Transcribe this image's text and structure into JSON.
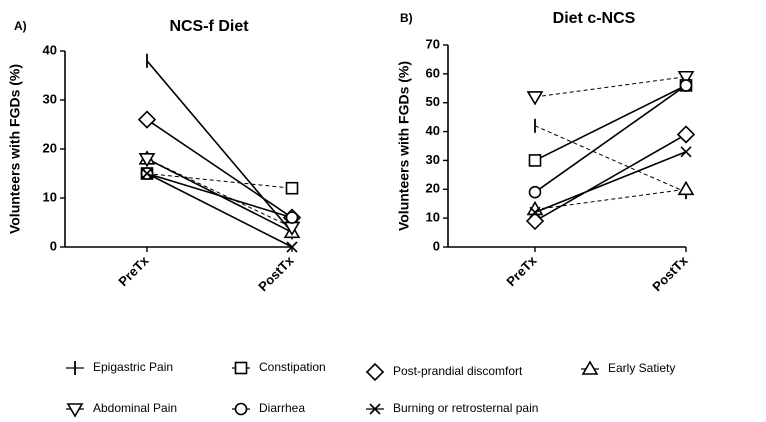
{
  "chart_data": [
    {
      "type": "line",
      "panel_label": "A)",
      "title": "NCS-f Diet",
      "xlabel": "",
      "ylabel": "Volunteers with FGDs (%)",
      "categories": [
        "PreTx",
        "PostTx"
      ],
      "ylim": [
        0,
        40
      ],
      "yticks": [
        "0",
        "10",
        "20",
        "30",
        "40"
      ],
      "series": [
        {
          "name": "Epigastric Pain",
          "marker": "vbar",
          "style": "solid",
          "values": [
            38,
            3
          ]
        },
        {
          "name": "Constipation",
          "marker": "square",
          "style": "dashed",
          "values": [
            15,
            12
          ]
        },
        {
          "name": "Post-prandial discomfort",
          "marker": "diamond",
          "style": "solid",
          "values": [
            26,
            6
          ]
        },
        {
          "name": "Early Satiety",
          "marker": "triangle-up",
          "style": "solid",
          "values": [
            18,
            3
          ]
        },
        {
          "name": "Abdominal Pain",
          "marker": "triangle-down",
          "style": "dashed",
          "values": [
            18,
            4
          ]
        },
        {
          "name": "Diarrhea",
          "marker": "circle",
          "style": "solid",
          "values": [
            15,
            6
          ]
        },
        {
          "name": "Burning or retrosternal pain",
          "marker": "x",
          "style": "solid",
          "values": [
            15,
            0
          ]
        }
      ]
    },
    {
      "type": "line",
      "panel_label": "B)",
      "title": "Diet c-NCS",
      "xlabel": "",
      "ylabel": "Volunteers with FGDs (%)",
      "categories": [
        "PreTx",
        "PostTx"
      ],
      "ylim": [
        0,
        70
      ],
      "yticks": [
        "0",
        "10",
        "20",
        "30",
        "40",
        "50",
        "60",
        "70"
      ],
      "series": [
        {
          "name": "Epigastric Pain",
          "marker": "vbar",
          "style": "dashed",
          "values": [
            42,
            19
          ]
        },
        {
          "name": "Constipation",
          "marker": "square",
          "style": "solid",
          "values": [
            30,
            56
          ]
        },
        {
          "name": "Post-prandial discomfort",
          "marker": "diamond",
          "style": "solid",
          "values": [
            9,
            39
          ]
        },
        {
          "name": "Early Satiety",
          "marker": "triangle-up",
          "style": "dashed",
          "values": [
            13,
            20
          ]
        },
        {
          "name": "Abdominal Pain",
          "marker": "triangle-down",
          "style": "dashed",
          "values": [
            52,
            59
          ]
        },
        {
          "name": "Diarrhea",
          "marker": "circle",
          "style": "solid",
          "values": [
            19,
            56
          ]
        },
        {
          "name": "Burning or retrosternal pain",
          "marker": "x",
          "style": "solid",
          "values": [
            12,
            33
          ]
        }
      ]
    }
  ],
  "legend": {
    "position": "bottom",
    "items": [
      {
        "label": "Epigastric Pain",
        "marker": "vbar"
      },
      {
        "label": "Constipation",
        "marker": "square"
      },
      {
        "label": "Post-prandial discomfort",
        "marker": "diamond"
      },
      {
        "label": "Early Satiety",
        "marker": "triangle-up"
      },
      {
        "label": "Abdominal Pain",
        "marker": "triangle-down"
      },
      {
        "label": "Diarrhea",
        "marker": "circle"
      },
      {
        "label": "Burning or retrosternal pain",
        "marker": "x"
      }
    ]
  }
}
